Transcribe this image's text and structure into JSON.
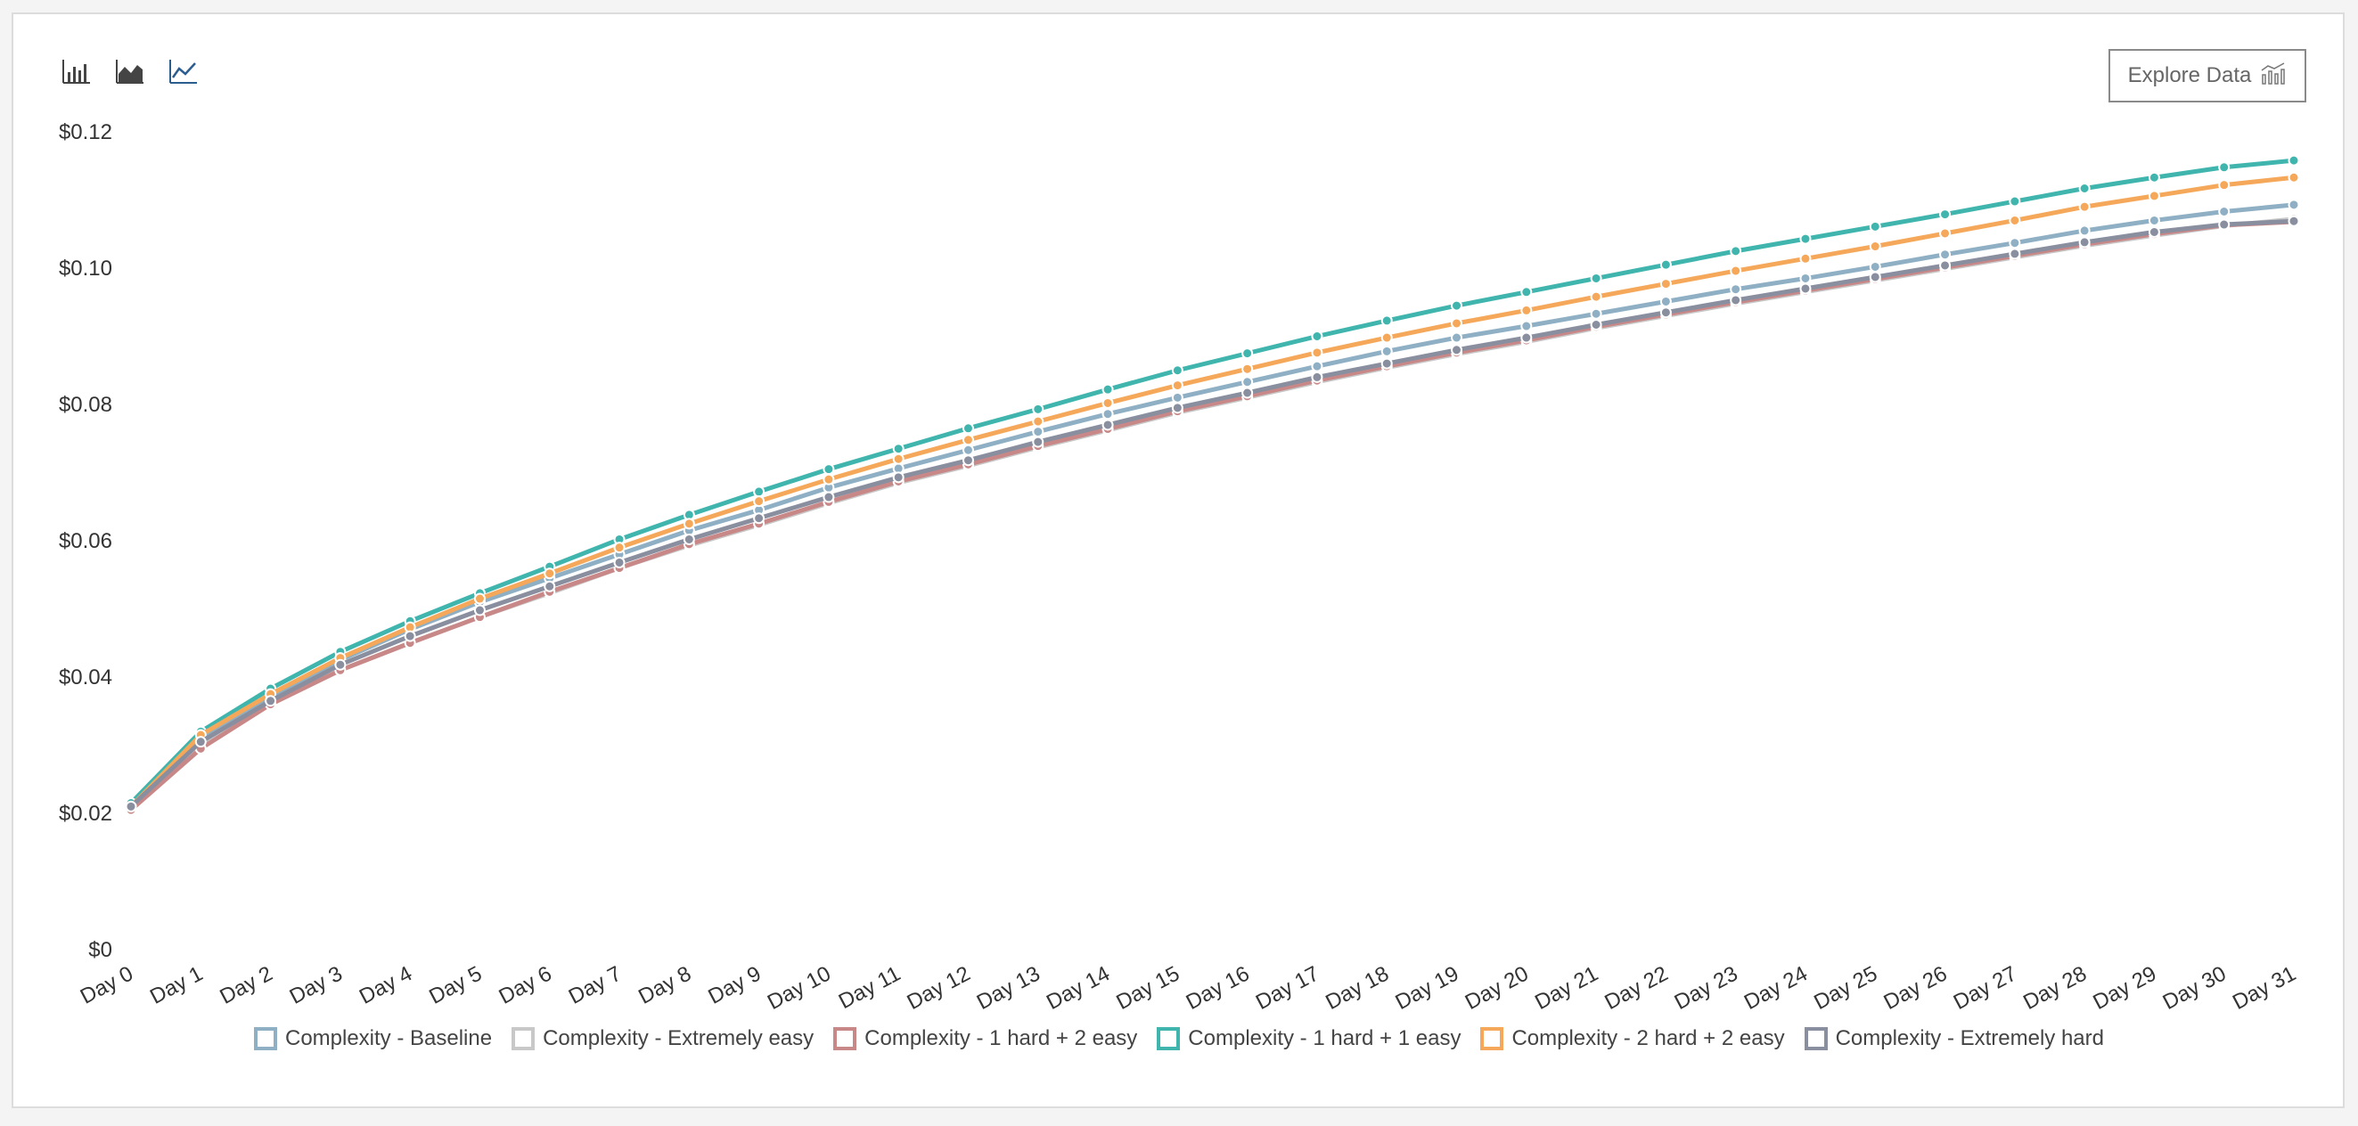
{
  "toolbar": {
    "icons": [
      "bar-chart-icon",
      "area-chart-icon",
      "line-chart-icon"
    ],
    "explore_label": "Explore Data"
  },
  "chart_data": {
    "type": "line",
    "categories": [
      "Day 0",
      "Day 1",
      "Day 2",
      "Day 3",
      "Day 4",
      "Day 5",
      "Day 6",
      "Day 7",
      "Day 8",
      "Day 9",
      "Day 10",
      "Day 11",
      "Day 12",
      "Day 13",
      "Day 14",
      "Day 15",
      "Day 16",
      "Day 17",
      "Day 18",
      "Day 19",
      "Day 20",
      "Day 21",
      "Day 22",
      "Day 23",
      "Day 24",
      "Day 25",
      "Day 26",
      "Day 27",
      "Day 28",
      "Day 29",
      "Day 30",
      "Day 31"
    ],
    "ylim": [
      0,
      0.12
    ],
    "yticks": [
      "$0",
      "$0.02",
      "$0.04",
      "$0.06",
      "$0.08",
      "$0.10",
      "$0.12"
    ],
    "grid": false,
    "legend_position": "bottom",
    "series": [
      {
        "name": "Complexity - Baseline",
        "color": "#8fb0c4",
        "values": [
          0.021,
          0.031,
          0.037,
          0.0425,
          0.047,
          0.051,
          0.0545,
          0.058,
          0.0615,
          0.0645,
          0.0678,
          0.0706,
          0.0733,
          0.076,
          0.0786,
          0.081,
          0.0833,
          0.0856,
          0.0878,
          0.0898,
          0.0915,
          0.0933,
          0.0951,
          0.0969,
          0.0985,
          0.1002,
          0.102,
          0.1037,
          0.1055,
          0.107,
          0.1083,
          0.1093
        ]
      },
      {
        "name": "Complexity - Extremely easy",
        "color": "#c8c8c8",
        "values": [
          0.0205,
          0.03,
          0.036,
          0.041,
          0.045,
          0.0488,
          0.0523,
          0.056,
          0.0593,
          0.0623,
          0.0655,
          0.0685,
          0.071,
          0.0737,
          0.0762,
          0.0788,
          0.081,
          0.0833,
          0.0854,
          0.0874,
          0.0892,
          0.0912,
          0.093,
          0.0948,
          0.0965,
          0.0982,
          0.0999,
          0.1016,
          0.1033,
          0.1048,
          0.1062,
          0.1072
        ]
      },
      {
        "name": "Complexity - 1 hard + 2 easy",
        "color": "#c98888",
        "values": [
          0.0205,
          0.0295,
          0.036,
          0.041,
          0.045,
          0.0488,
          0.0525,
          0.056,
          0.0595,
          0.0625,
          0.0657,
          0.0687,
          0.0712,
          0.0739,
          0.0764,
          0.079,
          0.0812,
          0.0835,
          0.0856,
          0.0876,
          0.0894,
          0.0914,
          0.0932,
          0.095,
          0.0967,
          0.0984,
          0.1001,
          0.1018,
          0.1035,
          0.105,
          0.1063,
          0.1068
        ]
      },
      {
        "name": "Complexity - 1 hard + 1 easy",
        "color": "#3fb5ae",
        "values": [
          0.0215,
          0.032,
          0.0383,
          0.0437,
          0.0482,
          0.0523,
          0.0562,
          0.0602,
          0.0638,
          0.0672,
          0.0705,
          0.0735,
          0.0765,
          0.0793,
          0.0822,
          0.085,
          0.0875,
          0.09,
          0.0923,
          0.0945,
          0.0965,
          0.0985,
          0.1005,
          0.1025,
          0.1043,
          0.1061,
          0.1079,
          0.1098,
          0.1117,
          0.1133,
          0.1148,
          0.1158
        ]
      },
      {
        "name": "Complexity - 2 hard + 2 easy",
        "color": "#f5a85a",
        "values": [
          0.021,
          0.0315,
          0.0375,
          0.0428,
          0.0473,
          0.0515,
          0.0552,
          0.059,
          0.0625,
          0.0658,
          0.069,
          0.072,
          0.0748,
          0.0775,
          0.0802,
          0.0828,
          0.0852,
          0.0876,
          0.0898,
          0.0919,
          0.0938,
          0.0958,
          0.0977,
          0.0996,
          0.1014,
          0.1032,
          0.1051,
          0.107,
          0.109,
          0.1106,
          0.1122,
          0.1133
        ]
      },
      {
        "name": "Complexity - Extremely hard",
        "color": "#8a8fa0",
        "values": [
          0.021,
          0.0305,
          0.0365,
          0.0418,
          0.046,
          0.0498,
          0.0533,
          0.0568,
          0.0602,
          0.0633,
          0.0664,
          0.0693,
          0.0718,
          0.0745,
          0.077,
          0.0795,
          0.0817,
          0.084,
          0.086,
          0.088,
          0.0898,
          0.0917,
          0.0935,
          0.0953,
          0.097,
          0.0987,
          0.1004,
          0.1021,
          0.1038,
          0.1053,
          0.1064,
          0.1069
        ]
      }
    ]
  }
}
